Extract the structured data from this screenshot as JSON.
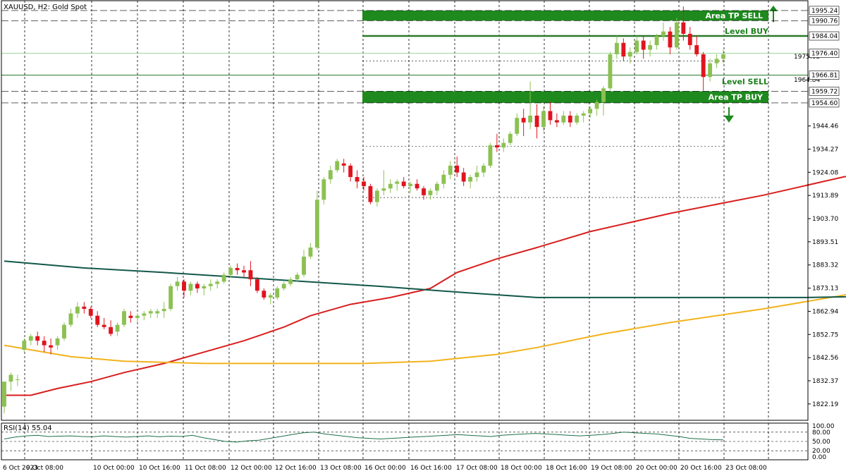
{
  "window": {
    "symbol_title": "XAUUSD, H2:  Gold Spot"
  },
  "colors": {
    "bull": "#8cc152",
    "bear": "#e0141e",
    "zone": "#1e8a1e",
    "level_line": "#2a7a2a",
    "ma_fast": "#d81e1e",
    "ma_mid": "#f2b31c",
    "ma_slow": "#12574a",
    "rsi": "#1f6e4a",
    "grid": "#000000"
  },
  "chart_data": [
    {
      "type": "candlestick",
      "title": "XAUUSD, H2:  Gold Spot",
      "ylim": [
        1815,
        1998
      ],
      "y_ticks": [
        "1822.19",
        "1832.37",
        "1842.56",
        "1852.75",
        "1862.94",
        "1873.13",
        "1883.32",
        "1893.51",
        "1903.70",
        "1913.89",
        "1924.08",
        "1934.27",
        "1944.46"
      ],
      "y_ticks_partial": [
        "1964.84",
        "1975.03"
      ],
      "x_labels": [
        "6 Oct 2023",
        "9 Oct 08:00",
        "10 Oct 00:00",
        "10 Oct 16:00",
        "11 Oct 08:00",
        "12 Oct 00:00",
        "12 Oct 16:00",
        "13 Oct 08:00",
        "16 Oct 00:00",
        "16 Oct 16:00",
        "17 Oct 08:00",
        "18 Oct 00:00",
        "18 Oct 16:00",
        "19 Oct 08:00",
        "20 Oct 00:00",
        "20 Oct 16:00",
        "23 Oct 08:00"
      ],
      "price_tags": [
        {
          "value": 1995.24,
          "label": "1995.24",
          "style": "plain"
        },
        {
          "value": 1990.76,
          "label": "1990.76",
          "style": "plain"
        },
        {
          "value": 1984.04,
          "label": "1984.04",
          "style": "plain"
        },
        {
          "value": 1976.4,
          "label": "1976.40",
          "style": "current"
        },
        {
          "value": 1966.81,
          "label": "1966.81",
          "style": "plain"
        },
        {
          "value": 1959.72,
          "label": "1959.72",
          "style": "plain"
        },
        {
          "value": 1954.6,
          "label": "1954.60",
          "style": "plain"
        }
      ],
      "zones": [
        {
          "label": "Area TP SELL",
          "from": 1990.76,
          "to": 1995.24,
          "arrow": "up"
        },
        {
          "label": "Area TP BUY",
          "from": 1954.6,
          "to": 1959.72,
          "arrow": "down"
        }
      ],
      "levels": [
        {
          "label": "Level BUY",
          "value": 1984.04
        },
        {
          "label": "Level SELL",
          "value": 1966.81
        }
      ],
      "candles": [
        [
          1821,
          1832,
          1818,
          1832
        ],
        [
          1832,
          1836,
          1828,
          1835
        ],
        [
          1833,
          1835,
          1830,
          1833
        ],
        [
          1846,
          1851,
          1845,
          1850
        ],
        [
          1850,
          1853,
          1848,
          1852
        ],
        [
          1852,
          1854,
          1848,
          1850
        ],
        [
          1850,
          1852,
          1845,
          1848
        ],
        [
          1848,
          1851,
          1844,
          1847
        ],
        [
          1848,
          1852,
          1846,
          1851
        ],
        [
          1851,
          1858,
          1850,
          1857
        ],
        [
          1857,
          1864,
          1856,
          1862
        ],
        [
          1862,
          1867,
          1860,
          1865
        ],
        [
          1865,
          1867,
          1862,
          1864
        ],
        [
          1864,
          1865,
          1860,
          1861
        ],
        [
          1861,
          1863,
          1856,
          1857
        ],
        [
          1857,
          1860,
          1855,
          1856
        ],
        [
          1856,
          1859,
          1852,
          1853
        ],
        [
          1854,
          1858,
          1852,
          1857
        ],
        [
          1857,
          1864,
          1856,
          1863
        ],
        [
          1861,
          1863,
          1858,
          1860
        ],
        [
          1860,
          1862,
          1858,
          1861
        ],
        [
          1861,
          1863,
          1859,
          1862
        ],
        [
          1862,
          1864,
          1860,
          1863
        ],
        [
          1862,
          1864,
          1860,
          1863
        ],
        [
          1863,
          1867,
          1860,
          1864
        ],
        [
          1864,
          1875,
          1863,
          1874
        ],
        [
          1874,
          1878,
          1872,
          1876
        ],
        [
          1876,
          1877,
          1869,
          1872
        ],
        [
          1872,
          1876,
          1870,
          1875
        ],
        [
          1875,
          1876,
          1871,
          1873
        ],
        [
          1873,
          1875,
          1870,
          1874
        ],
        [
          1874,
          1877,
          1872,
          1875
        ],
        [
          1875,
          1877,
          1873,
          1876
        ],
        [
          1876,
          1880,
          1875,
          1879
        ],
        [
          1879,
          1883,
          1878,
          1882
        ],
        [
          1882,
          1884,
          1879,
          1881
        ],
        [
          1881,
          1883,
          1878,
          1880
        ],
        [
          1881,
          1885,
          1874,
          1877
        ],
        [
          1877,
          1878,
          1871,
          1872
        ],
        [
          1872,
          1873,
          1868,
          1869
        ],
        [
          1869,
          1871,
          1866,
          1870
        ],
        [
          1869,
          1874,
          1868,
          1873
        ],
        [
          1873,
          1876,
          1872,
          1875
        ],
        [
          1875,
          1878,
          1874,
          1877
        ],
        [
          1877,
          1880,
          1876,
          1879
        ],
        [
          1879,
          1890,
          1878,
          1887
        ],
        [
          1887,
          1893,
          1886,
          1891
        ],
        [
          1891,
          1916,
          1890,
          1912
        ],
        [
          1912,
          1922,
          1910,
          1921
        ],
        [
          1921,
          1927,
          1919,
          1925
        ],
        [
          1925,
          1930,
          1924,
          1929
        ],
        [
          1928,
          1930,
          1924,
          1927
        ],
        [
          1927,
          1928,
          1920,
          1922
        ],
        [
          1922,
          1925,
          1917,
          1920
        ],
        [
          1920,
          1922,
          1916,
          1918
        ],
        [
          1918,
          1919,
          1910,
          1911
        ],
        [
          1911,
          1917,
          1909,
          1916
        ],
        [
          1916,
          1925,
          1914,
          1917
        ],
        [
          1917,
          1921,
          1915,
          1919
        ],
        [
          1919,
          1921,
          1916,
          1920
        ],
        [
          1920,
          1922,
          1917,
          1918
        ],
        [
          1918,
          1920,
          1915,
          1919
        ],
        [
          1919,
          1921,
          1916,
          1917
        ],
        [
          1917,
          1918,
          1912,
          1914
        ],
        [
          1914,
          1917,
          1912,
          1916
        ],
        [
          1916,
          1920,
          1914,
          1919
        ],
        [
          1919,
          1925,
          1917,
          1923
        ],
        [
          1923,
          1929,
          1921,
          1927
        ],
        [
          1927,
          1931,
          1922,
          1924
        ],
        [
          1924,
          1926,
          1918,
          1920
        ],
        [
          1920,
          1923,
          1917,
          1922
        ],
        [
          1922,
          1927,
          1920,
          1924
        ],
        [
          1924,
          1928,
          1922,
          1927
        ],
        [
          1927,
          1937,
          1926,
          1936
        ],
        [
          1936,
          1941,
          1933,
          1935
        ],
        [
          1935,
          1939,
          1933,
          1937
        ],
        [
          1937,
          1942,
          1936,
          1941
        ],
        [
          1941,
          1950,
          1940,
          1948
        ],
        [
          1948,
          1952,
          1940,
          1946
        ],
        [
          1946,
          1964,
          1943,
          1949
        ],
        [
          1949,
          1954,
          1939,
          1944
        ],
        [
          1944,
          1953,
          1942,
          1951
        ],
        [
          1951,
          1955,
          1945,
          1947
        ],
        [
          1947,
          1950,
          1944,
          1946
        ],
        [
          1946,
          1951,
          1945,
          1949
        ],
        [
          1949,
          1951,
          1944,
          1946
        ],
        [
          1946,
          1950,
          1945,
          1949
        ],
        [
          1949,
          1951,
          1946,
          1950
        ],
        [
          1950,
          1953,
          1948,
          1952
        ],
        [
          1952,
          1956,
          1949,
          1955
        ],
        [
          1955,
          1962,
          1949,
          1961
        ],
        [
          1961,
          1977,
          1960,
          1976
        ],
        [
          1976,
          1984,
          1974,
          1981
        ],
        [
          1981,
          1983,
          1973,
          1975
        ],
        [
          1975,
          1979,
          1972,
          1977
        ],
        [
          1977,
          1984,
          1976,
          1982
        ],
        [
          1982,
          1984,
          1974,
          1978
        ],
        [
          1978,
          1982,
          1975,
          1980
        ],
        [
          1980,
          1985,
          1978,
          1984
        ],
        [
          1984,
          1990,
          1982,
          1986
        ],
        [
          1986,
          1988,
          1976,
          1979
        ],
        [
          1979,
          1992,
          1978,
          1990
        ],
        [
          1990,
          1997,
          1982,
          1985
        ],
        [
          1985,
          1988,
          1978,
          1980
        ],
        [
          1980,
          1984,
          1975,
          1976
        ],
        [
          1976,
          1977,
          1960,
          1966
        ],
        [
          1966,
          1974,
          1964,
          1972
        ],
        [
          1972,
          1976,
          1970,
          1974
        ],
        [
          1974,
          1978,
          1972,
          1976
        ]
      ],
      "series": [
        {
          "values": [
            [
              0,
              1826
            ],
            [
              4,
              1826
            ],
            [
              8,
              1829
            ],
            [
              13,
              1832
            ],
            [
              18,
              1836
            ],
            [
              24,
              1840
            ],
            [
              30,
              1845
            ],
            [
              36,
              1850
            ],
            [
              42,
              1856
            ],
            [
              46,
              1861
            ],
            [
              52,
              1866
            ],
            [
              58,
              1869
            ],
            [
              64,
              1873
            ],
            [
              68,
              1880
            ],
            [
              74,
              1886
            ],
            [
              80,
              1891
            ],
            [
              88,
              1898
            ],
            [
              100,
              1906
            ],
            [
              114,
              1914
            ],
            [
              126,
              1922
            ],
            [
              140,
              1930
            ],
            [
              152,
              1938
            ],
            [
              162,
              1944
            ],
            [
              172,
              1949
            ],
            [
              182,
              1954
            ]
          ]
        },
        {
          "values": [
            [
              0,
              1848
            ],
            [
              4,
              1846
            ],
            [
              10,
              1843
            ],
            [
              18,
              1841
            ],
            [
              30,
              1840
            ],
            [
              42,
              1840
            ],
            [
              54,
              1840
            ],
            [
              64,
              1841
            ],
            [
              74,
              1844
            ],
            [
              80,
              1847
            ],
            [
              90,
              1853
            ],
            [
              100,
              1858
            ],
            [
              114,
              1864
            ],
            [
              126,
              1870
            ],
            [
              140,
              1877
            ],
            [
              152,
              1885
            ],
            [
              164,
              1893
            ],
            [
              176,
              1901
            ],
            [
              182,
              1904
            ]
          ]
        },
        {
          "values": [
            [
              0,
              1885
            ],
            [
              12,
              1882
            ],
            [
              24,
              1880
            ],
            [
              40,
              1877
            ],
            [
              56,
              1874
            ],
            [
              70,
              1871
            ],
            [
              80,
              1869
            ],
            [
              100,
              1869
            ],
            [
              120,
              1869
            ],
            [
              140,
              1870
            ],
            [
              156,
              1872
            ],
            [
              168,
              1876
            ],
            [
              178,
              1881
            ],
            [
              182,
              1882
            ]
          ]
        }
      ]
    },
    {
      "type": "line",
      "title": "RSI(14) 55.04",
      "ylim": [
        0,
        100
      ],
      "y_ticks": [
        "100.00",
        "80.00",
        "50.00",
        "20.00",
        "0.00"
      ],
      "levels": [
        80,
        50,
        20
      ],
      "series": [
        {
          "values": [
            58,
            64,
            68,
            70,
            66,
            67,
            68,
            66,
            65,
            68,
            66,
            64,
            66,
            68,
            65,
            67,
            66,
            70,
            62,
            56,
            50,
            48,
            52,
            54,
            60,
            66,
            72,
            78,
            80,
            74,
            70,
            66,
            62,
            60,
            58,
            60,
            62,
            64,
            66,
            68,
            70,
            72,
            70,
            68,
            66,
            70,
            72,
            74,
            76,
            74,
            72,
            70,
            68,
            70,
            72,
            76,
            80,
            78,
            76,
            74,
            70,
            66,
            60,
            58,
            56,
            55
          ]
        }
      ]
    }
  ]
}
